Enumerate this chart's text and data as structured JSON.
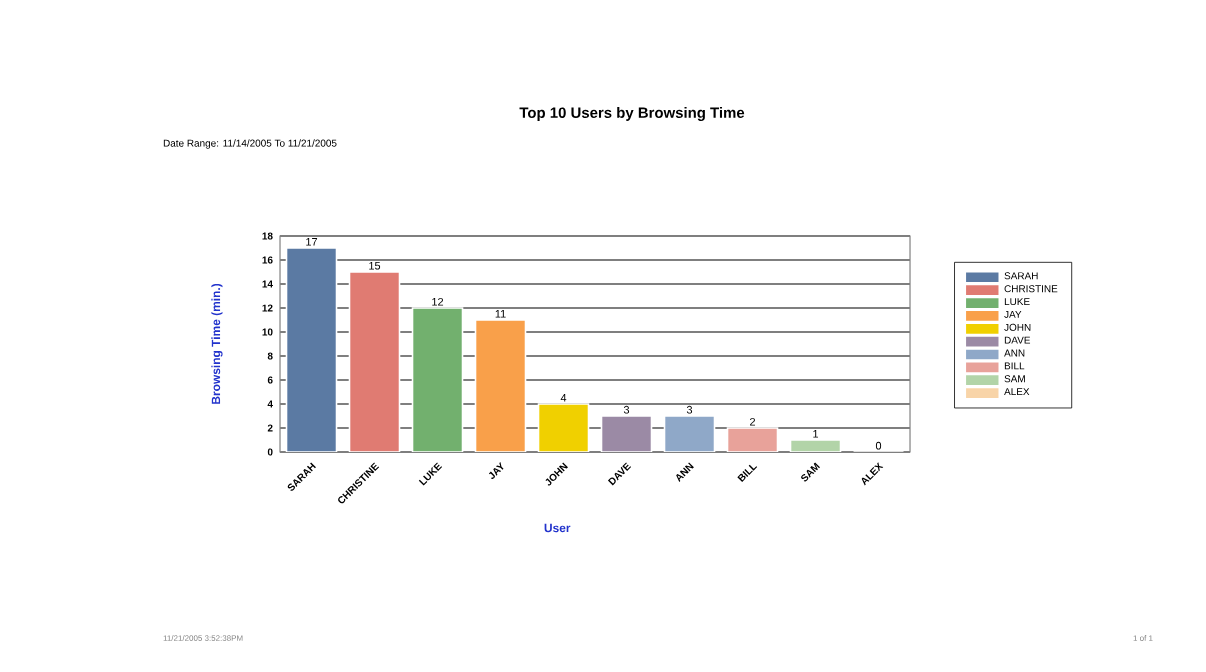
{
  "chart_data": {
    "type": "bar",
    "title": "Top 10 Users by Browsing Time",
    "subtitle": "Date Range:     11/14/2005 To 11/21/2005",
    "xlabel": "User",
    "ylabel": "Browsing Time (min.)",
    "categories": [
      "SARAH",
      "CHRISTINE",
      "LUKE",
      "JAY",
      "JOHN",
      "DAVE",
      "ANN",
      "BILL",
      "SAM",
      "ALEX"
    ],
    "series": [
      {
        "name": "SARAH",
        "color": "#5b7aa3",
        "values": [
          17,
          null,
          null,
          null,
          null,
          null,
          null,
          null,
          null,
          null
        ]
      },
      {
        "name": "CHRISTINE",
        "color": "#e07b72",
        "values": [
          null,
          15,
          null,
          null,
          null,
          null,
          null,
          null,
          null,
          null
        ]
      },
      {
        "name": "LUKE",
        "color": "#72b06e",
        "values": [
          null,
          null,
          12,
          null,
          null,
          null,
          null,
          null,
          null,
          null
        ]
      },
      {
        "name": "JAY",
        "color": "#f9a04a",
        "values": [
          null,
          null,
          null,
          11,
          null,
          null,
          null,
          null,
          null,
          null
        ]
      },
      {
        "name": "JOHN",
        "color": "#f0d000",
        "values": [
          null,
          null,
          null,
          null,
          4,
          null,
          null,
          null,
          null,
          null
        ]
      },
      {
        "name": "DAVE",
        "color": "#9b8aa5",
        "values": [
          null,
          null,
          null,
          null,
          null,
          3,
          null,
          null,
          null,
          null
        ]
      },
      {
        "name": "ANN",
        "color": "#8fa8c8",
        "values": [
          null,
          null,
          null,
          null,
          null,
          null,
          3,
          null,
          null,
          null
        ]
      },
      {
        "name": "BILL",
        "color": "#e8a29a",
        "values": [
          null,
          null,
          null,
          null,
          null,
          null,
          null,
          2,
          null,
          null
        ]
      },
      {
        "name": "SAM",
        "color": "#b2d4a8",
        "values": [
          null,
          null,
          null,
          null,
          null,
          null,
          null,
          null,
          1,
          null
        ]
      },
      {
        "name": "ALEX",
        "color": "#f8d4a8",
        "values": [
          null,
          null,
          null,
          null,
          null,
          null,
          null,
          null,
          null,
          0
        ]
      }
    ],
    "ylim": [
      0,
      18
    ],
    "yticks": [
      0,
      2,
      4,
      6,
      8,
      10,
      12,
      14,
      16,
      18
    ],
    "grid": "y",
    "legend": "right",
    "data_labels": true,
    "annotations": [
      "11/21/2005   3:52:38PM",
      "1  of  1"
    ]
  }
}
